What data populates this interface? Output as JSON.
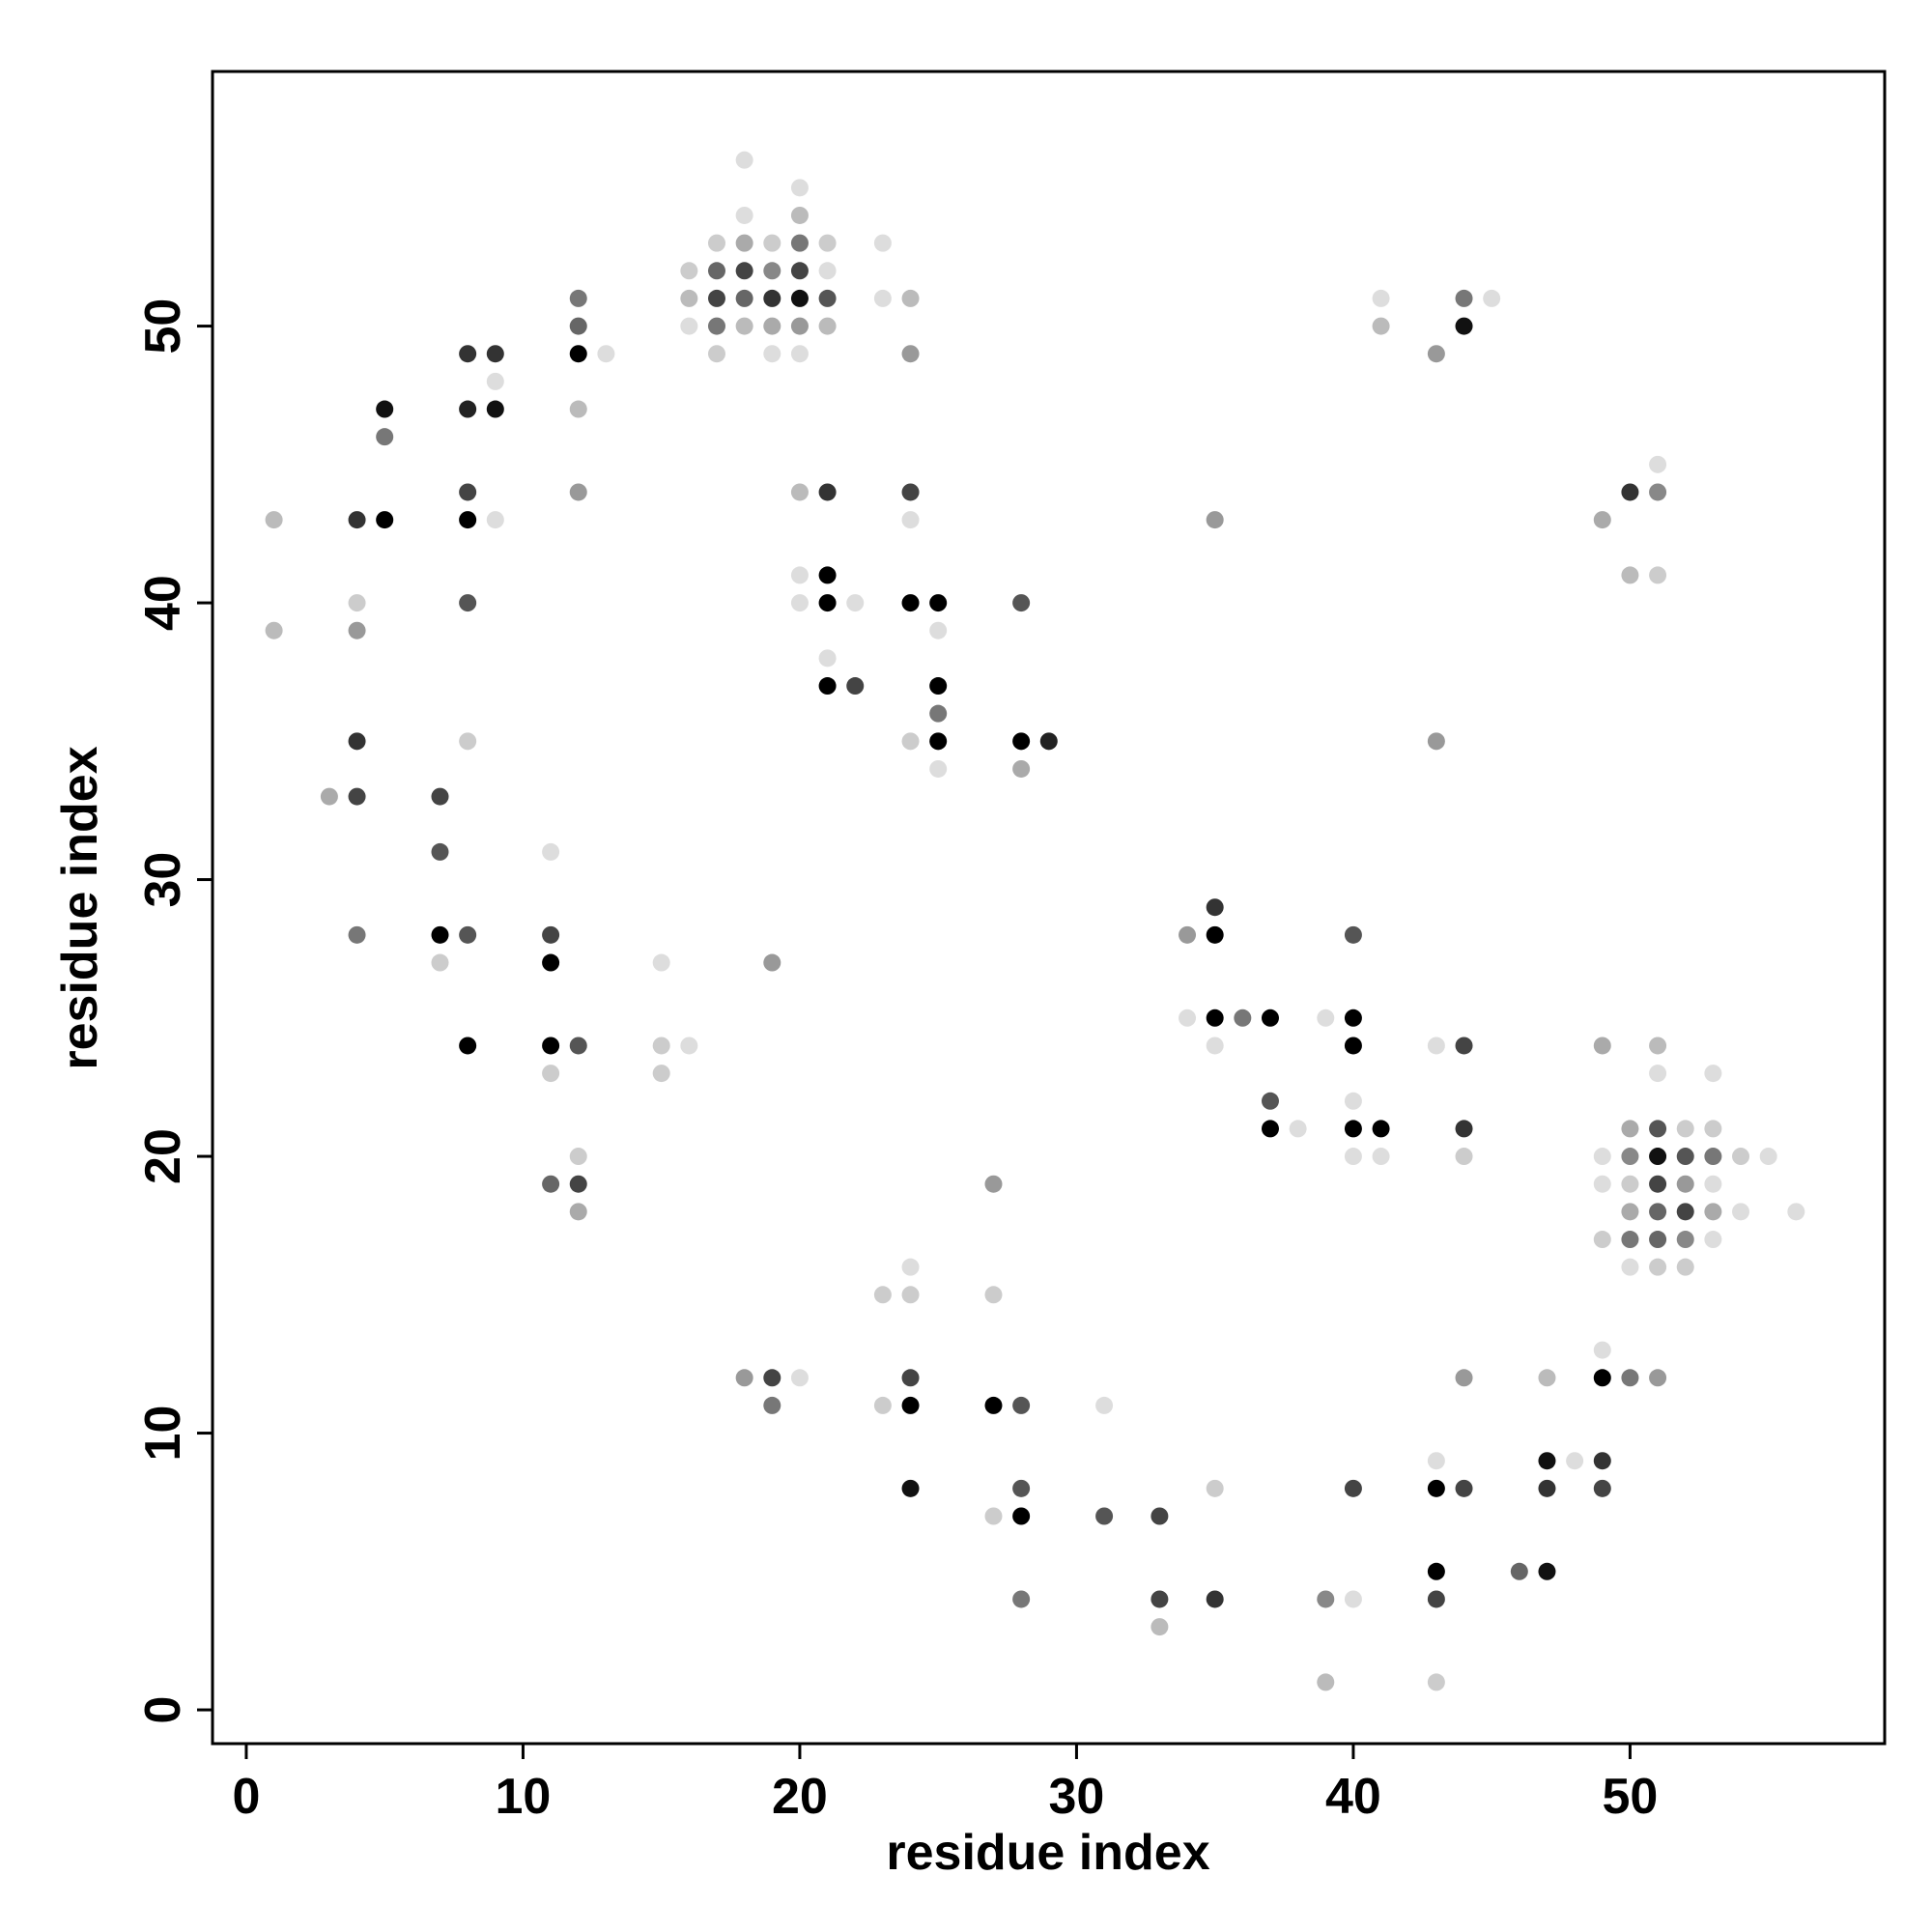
{
  "chart_data": {
    "type": "scatter",
    "xlabel": "residue index",
    "ylabel": "residue index",
    "xlim": [
      -1.22,
      59.2
    ],
    "ylim": [
      -1.22,
      59.2
    ],
    "xticks": [
      0,
      10,
      20,
      30,
      40,
      50
    ],
    "yticks": [
      0,
      10,
      20,
      30,
      40,
      50
    ],
    "x": [
      1,
      1,
      3,
      4,
      4,
      4,
      4,
      4,
      4,
      5,
      5,
      5,
      7,
      7,
      7,
      7,
      8,
      8,
      8,
      8,
      8,
      8,
      8,
      8,
      9,
      9,
      9,
      9,
      11,
      11,
      11,
      11,
      11,
      11,
      12,
      12,
      12,
      12,
      12,
      12,
      12,
      12,
      12,
      13,
      15,
      15,
      15,
      16,
      16,
      16,
      16,
      17,
      17,
      17,
      17,
      17,
      18,
      18,
      18,
      18,
      18,
      18,
      18,
      19,
      19,
      19,
      19,
      19,
      19,
      19,
      19,
      20,
      20,
      20,
      20,
      20,
      20,
      20,
      20,
      20,
      20,
      20,
      21,
      21,
      21,
      21,
      21,
      21,
      21,
      21,
      21,
      22,
      22,
      23,
      23,
      23,
      23,
      24,
      24,
      24,
      24,
      24,
      24,
      24,
      24,
      24,
      24,
      24,
      25,
      25,
      25,
      25,
      25,
      25,
      27,
      27,
      27,
      27,
      28,
      28,
      28,
      28,
      28,
      28,
      28,
      29,
      31,
      31,
      33,
      33,
      33,
      35,
      34,
      34,
      35,
      35,
      35,
      35,
      35,
      35,
      36,
      37,
      37,
      37,
      38,
      39,
      39,
      39,
      40,
      40,
      40,
      40,
      40,
      40,
      40,
      40,
      41,
      41,
      41,
      41,
      43,
      43,
      43,
      43,
      43,
      43,
      43,
      43,
      44,
      44,
      44,
      44,
      44,
      44,
      44,
      45,
      46,
      47,
      47,
      47,
      47,
      48,
      49,
      49,
      49,
      49,
      49,
      49,
      49,
      49,
      49,
      50,
      50,
      50,
      50,
      50,
      50,
      50,
      50,
      50,
      51,
      51,
      51,
      51,
      51,
      51,
      51,
      51,
      51,
      51,
      51,
      51,
      52,
      52,
      52,
      52,
      52,
      52,
      53,
      53,
      53,
      53,
      53,
      53,
      54,
      54,
      55,
      56
    ],
    "y": [
      43,
      39,
      33,
      43,
      40,
      39,
      35,
      33,
      28,
      47,
      46,
      43,
      33,
      31,
      28,
      27,
      49,
      47,
      44,
      43,
      40,
      35,
      28,
      24,
      49,
      48,
      47,
      43,
      31,
      28,
      27,
      24,
      23,
      19,
      51,
      50,
      49,
      47,
      44,
      24,
      20,
      19,
      18,
      49,
      27,
      24,
      23,
      24,
      52,
      51,
      50,
      53,
      52,
      51,
      50,
      49,
      56,
      54,
      53,
      52,
      51,
      50,
      12,
      53,
      52,
      51,
      50,
      49,
      27,
      12,
      11,
      55,
      54,
      53,
      52,
      51,
      50,
      49,
      44,
      41,
      40,
      12,
      53,
      52,
      51,
      50,
      44,
      41,
      40,
      38,
      37,
      40,
      37,
      53,
      51,
      15,
      11,
      51,
      49,
      44,
      43,
      40,
      35,
      16,
      15,
      12,
      11,
      8,
      40,
      39,
      37,
      36,
      35,
      34,
      19,
      15,
      11,
      7,
      40,
      35,
      34,
      11,
      8,
      7,
      4,
      35,
      11,
      7,
      7,
      4,
      3,
      43,
      28,
      25,
      29,
      28,
      25,
      24,
      8,
      4,
      25,
      25,
      22,
      21,
      21,
      25,
      4,
      1,
      28,
      25,
      24,
      22,
      21,
      20,
      8,
      4,
      51,
      50,
      21,
      20,
      49,
      35,
      24,
      9,
      8,
      5,
      4,
      1,
      51,
      50,
      24,
      21,
      20,
      12,
      8,
      51,
      5,
      12,
      9,
      8,
      5,
      9,
      43,
      24,
      20,
      19,
      17,
      13,
      12,
      9,
      8,
      44,
      41,
      21,
      20,
      19,
      18,
      17,
      16,
      12,
      45,
      44,
      41,
      24,
      23,
      21,
      20,
      19,
      18,
      17,
      16,
      12,
      21,
      20,
      19,
      18,
      17,
      16,
      23,
      21,
      20,
      19,
      18,
      17,
      20,
      18,
      20,
      18
    ],
    "colors": [
      "#bbb",
      "#bbb",
      "#aaa",
      "#333",
      "#ccc",
      "#999",
      "#333",
      "#444",
      "#777",
      "#111",
      "#777",
      "#000",
      "#444",
      "#555",
      "#000",
      "#ccc",
      "#333",
      "#222",
      "#444",
      "#000",
      "#555",
      "#ccc",
      "#555",
      "#000",
      "#333",
      "#ddd",
      "#111",
      "#ddd",
      "#ddd",
      "#444",
      "#000",
      "#000",
      "#ccc",
      "#666",
      "#777",
      "#666",
      "#000",
      "#bbb",
      "#999",
      "#555",
      "#ccc",
      "#444",
      "#aaa",
      "#ddd",
      "#ddd",
      "#ccc",
      "#ccc",
      "#ddd",
      "#ccc",
      "#bbb",
      "#ddd",
      "#ccc",
      "#666",
      "#444",
      "#777",
      "#ccc",
      "#ddd",
      "#ddd",
      "#aaa",
      "#444",
      "#666",
      "#bbb",
      "#999",
      "#ccc",
      "#888",
      "#333",
      "#aaa",
      "#ddd",
      "#999",
      "#444",
      "#777",
      "#ddd",
      "#bbb",
      "#777",
      "#444",
      "#111",
      "#999",
      "#ddd",
      "#bbb",
      "#ddd",
      "#ddd",
      "#ddd",
      "#ccc",
      "#ddd",
      "#555",
      "#bbb",
      "#333",
      "#000",
      "#000",
      "#ddd",
      "#000",
      "#ddd",
      "#444",
      "#ddd",
      "#ddd",
      "#ccc",
      "#ccc",
      "#bbb",
      "#999",
      "#444",
      "#ddd",
      "#000",
      "#ccc",
      "#ddd",
      "#ccc",
      "#444",
      "#000",
      "#111",
      "#000",
      "#ddd",
      "#000",
      "#777",
      "#000",
      "#ddd",
      "#999",
      "#ccc",
      "#000",
      "#ccc",
      "#555",
      "#000",
      "#aaa",
      "#555",
      "#555",
      "#000",
      "#777",
      "#222",
      "#ddd",
      "#555",
      "#444",
      "#444",
      "#bbb",
      "#999",
      "#999",
      "#ddd",
      "#333",
      "#000",
      "#000",
      "#ddd",
      "#ccc",
      "#333",
      "#777",
      "#000",
      "#555",
      "#000",
      "#ddd",
      "#ddd",
      "#888",
      "#bbb",
      "#555",
      "#000",
      "#000",
      "#ddd",
      "#000",
      "#ddd",
      "#444",
      "#ddd",
      "#ddd",
      "#bbb",
      "#000",
      "#ddd",
      "#999",
      "#999",
      "#ddd",
      "#ddd",
      "#000",
      "#000",
      "#444",
      "#ccc",
      "#777",
      "#111",
      "#444",
      "#333",
      "#ccc",
      "#999",
      "#444",
      "#ddd",
      "#666",
      "#bbb",
      "#111",
      "#333",
      "#111",
      "#ddd",
      "#aaa",
      "#aaa",
      "#ddd",
      "#ddd",
      "#ccc",
      "#ddd",
      "#000",
      "#333",
      "#444",
      "#333",
      "#bbb",
      "#aaa",
      "#888",
      "#ccc",
      "#aaa",
      "#777",
      "#ddd",
      "#777",
      "#ddd",
      "#888",
      "#ccc",
      "#bbb",
      "#ddd",
      "#555",
      "#111",
      "#444",
      "#666",
      "#666",
      "#ccc",
      "#999",
      "#ccc",
      "#555",
      "#999",
      "#444",
      "#888",
      "#ccc",
      "#ddd",
      "#ccc",
      "#777",
      "#ddd",
      "#aaa",
      "#ddd",
      "#ccc",
      "#ddd",
      "#ddd",
      "#ddd"
    ]
  }
}
